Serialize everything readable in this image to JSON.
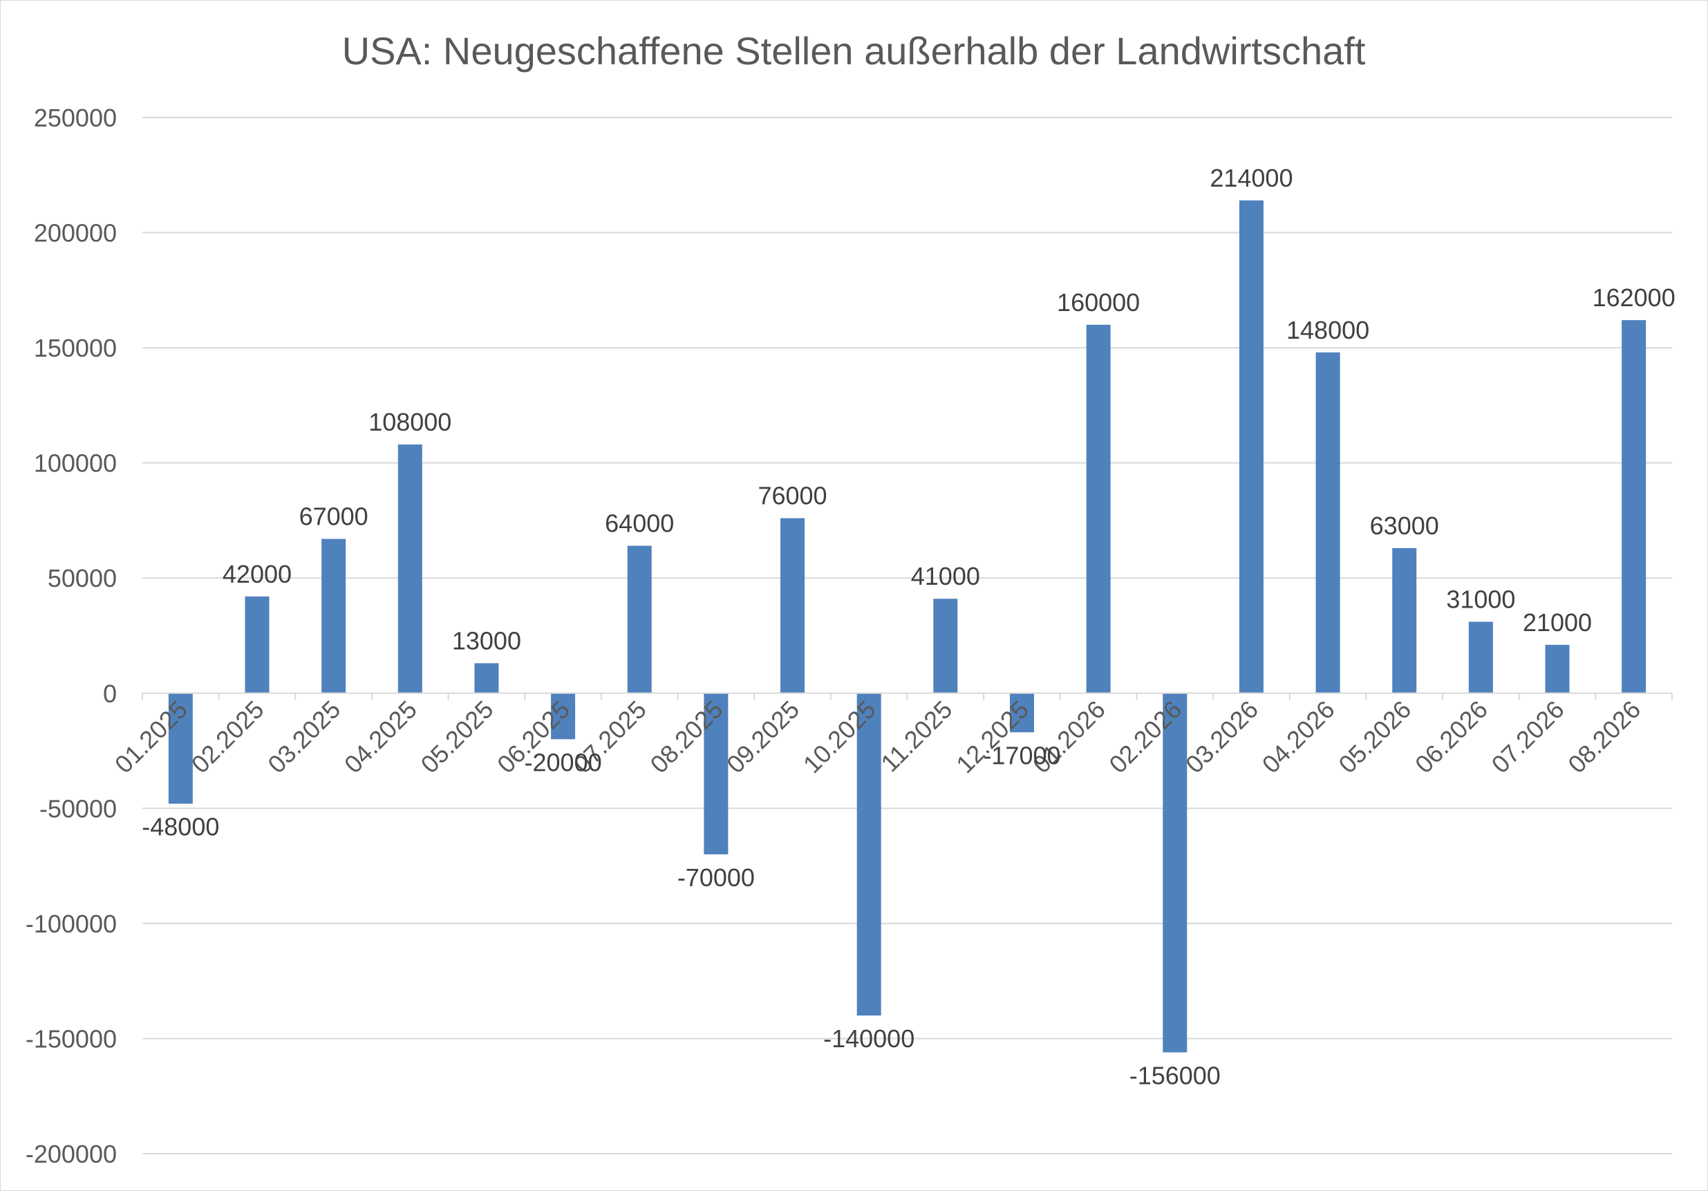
{
  "chart_data": {
    "type": "bar",
    "title": "USA: Neugeschaffene Stellen außerhalb der Landwirtschaft",
    "xlabel": "",
    "ylabel": "",
    "categories": [
      "01.2025",
      "02.2025",
      "03.2025",
      "04.2025",
      "05.2025",
      "06.2025",
      "07.2025",
      "08.2025",
      "09.2025",
      "10.2025",
      "11.2025",
      "12.2025",
      "01.2026",
      "02.2026",
      "03.2026",
      "04.2026",
      "05.2026",
      "06.2026",
      "07.2026",
      "08.2026"
    ],
    "values": [
      -48000,
      42000,
      67000,
      108000,
      13000,
      -20000,
      64000,
      -70000,
      76000,
      -140000,
      41000,
      -17000,
      160000,
      -156000,
      214000,
      148000,
      63000,
      31000,
      21000,
      162000
    ],
    "ylim": [
      -200000,
      250000
    ],
    "yticks": [
      250000,
      200000,
      150000,
      100000,
      50000,
      0,
      -50000,
      -100000,
      -150000,
      -200000
    ],
    "grid": true,
    "legend": "none",
    "data_labels": true,
    "bar_color": "#4f81bd",
    "grid_color": "#d9d9d9",
    "text_color": "#595959"
  }
}
